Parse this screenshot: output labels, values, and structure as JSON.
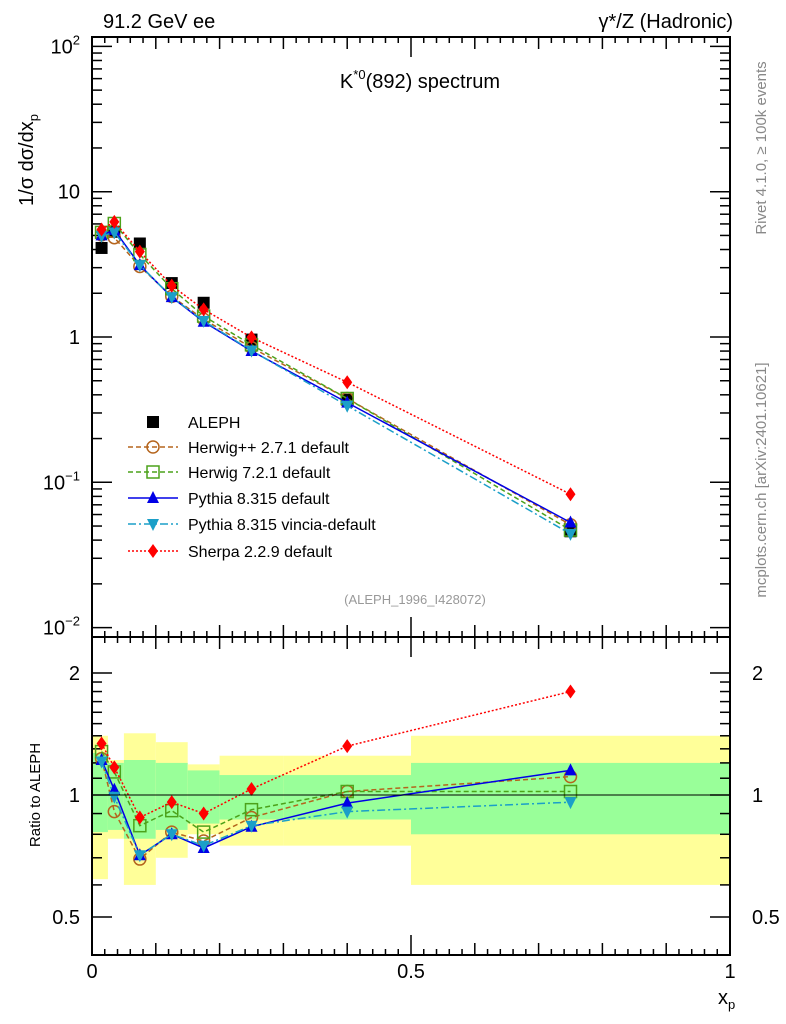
{
  "header": {
    "left": "91.2 GeV ee",
    "right": "γ*/Z (Hadronic)"
  },
  "side": {
    "rivet": "Rivet 4.1.0, ≥ 100k events",
    "mcplots": "mcplots.cern.ch [arXiv:2401.10621]"
  },
  "chart_data": {
    "type": "line",
    "title_main": "K",
    "title_sup": "*0",
    "title_rest": "(892) spectrum",
    "ref_label": "(ALEPH_1996_I428072)",
    "ylabel_main": "1/σ  dσ/dx",
    "ylabel_sub": "p",
    "ylabel_ratio": "Ratio to ALEPH",
    "xlabel_main": "x",
    "xlabel_sub": "p",
    "xlim": [
      0,
      1
    ],
    "ylim_upper": [
      0.008,
      130
    ],
    "yscale_upper": "log",
    "ylim_ratio": [
      0.4,
      2.45
    ],
    "yscale_ratio": "log",
    "xticks": [
      {
        "v": 0,
        "label": "0"
      },
      {
        "v": 0.5,
        "label": "0.5"
      },
      {
        "v": 1,
        "label": "1"
      }
    ],
    "yticks_upper": [
      {
        "v": 100,
        "base": "10",
        "exp": "2"
      },
      {
        "v": 10,
        "base": "10",
        "exp": ""
      },
      {
        "v": 1,
        "base": "1",
        "exp": ""
      },
      {
        "v": 0.1,
        "base": "10",
        "exp": "−1"
      },
      {
        "v": 0.01,
        "base": "10",
        "exp": "−2"
      }
    ],
    "yticks_ratio": [
      {
        "v": 2,
        "label": "2"
      },
      {
        "v": 1,
        "label": "1"
      },
      {
        "v": 0.5,
        "label": "0.5"
      }
    ],
    "x": [
      0.015,
      0.035,
      0.075,
      0.125,
      0.175,
      0.25,
      0.4,
      0.75
    ],
    "data": {
      "name": "ALEPH",
      "values": [
        4.1,
        5.3,
        4.4,
        2.35,
        1.72,
        0.96,
        0.37,
        0.046
      ]
    },
    "bands": {
      "bin_edges": [
        0,
        0.025,
        0.05,
        0.1,
        0.15,
        0.2,
        0.3,
        0.5,
        1.0
      ],
      "outer": [
        [
          0.62,
          1.4
        ],
        [
          0.78,
          1.22
        ],
        [
          0.6,
          1.42
        ],
        [
          0.7,
          1.35
        ],
        [
          0.8,
          1.19
        ],
        [
          0.75,
          1.25
        ],
        [
          0.75,
          1.25
        ],
        [
          0.6,
          1.4
        ]
      ],
      "inner": [
        [
          0.81,
          1.27
        ],
        [
          0.82,
          1.2
        ],
        [
          0.78,
          1.22
        ],
        [
          0.82,
          1.2
        ],
        [
          0.85,
          1.15
        ],
        [
          0.87,
          1.12
        ],
        [
          0.87,
          1.12
        ],
        [
          0.8,
          1.2
        ]
      ],
      "outer_color": "#ffff99",
      "inner_color": "#99ff99"
    },
    "series": [
      {
        "name": "Herwig++ 2.7.1 default",
        "color": "#b5651d",
        "dash": "5,3",
        "marker": "circle",
        "ratio": [
          1.23,
          0.91,
          0.695,
          0.81,
          0.77,
          0.88,
          1.02,
          1.11
        ]
      },
      {
        "name": "Herwig 7.2.1 default",
        "color": "#4ca21a",
        "dash": "5,3",
        "marker": "square",
        "ratio": [
          1.28,
          1.14,
          0.84,
          0.915,
          0.81,
          0.92,
          1.02,
          1.02
        ]
      },
      {
        "name": "Pythia 8.315 default",
        "color": "#0000e6",
        "dash": "",
        "marker": "triangle-up",
        "ratio": [
          1.22,
          1.03,
          0.71,
          0.8,
          0.74,
          0.835,
          0.955,
          1.15
        ]
      },
      {
        "name": "Pythia 8.315 vincia-default",
        "color": "#1b9fc8",
        "dash": "8,3,2,3",
        "marker": "triangle-down",
        "ratio": [
          1.21,
          0.99,
          0.71,
          0.8,
          0.75,
          0.84,
          0.91,
          0.96
        ]
      },
      {
        "name": "Sherpa 2.2.9 default",
        "color": "#ff0000",
        "dash": "2,2",
        "marker": "diamond",
        "ratio": [
          1.34,
          1.17,
          0.88,
          0.96,
          0.9,
          1.035,
          1.32,
          1.8
        ]
      }
    ]
  }
}
